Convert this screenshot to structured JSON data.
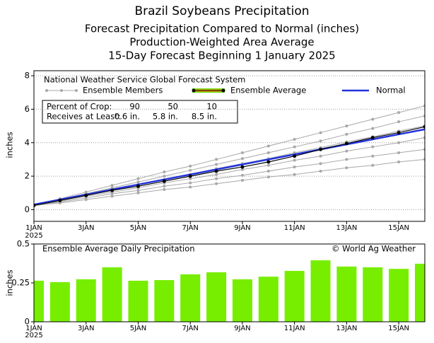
{
  "chart_data": [
    {
      "type": "line",
      "title": "Brazil Soybeans Precipitation",
      "subtitle": [
        "Forecast Precipitation Compared to Normal (inches)",
        "Production-Weighted Area Average",
        "15-Day Forecast Beginning 1 January 2025"
      ],
      "source": "National Weather Service Global Forecast System",
      "ylabel": "inches",
      "year": "2025",
      "table": {
        "rows": [
          [
            "Percent of Crop:",
            "90",
            "50",
            "10"
          ],
          [
            "Receives at Least:",
            "0.6 in.",
            "5.8 in.",
            "8.5 in."
          ]
        ]
      },
      "x": [
        1,
        2,
        3,
        4,
        5,
        6,
        7,
        8,
        9,
        10,
        11,
        12,
        13,
        14,
        15,
        16
      ],
      "xlim": [
        1,
        16
      ],
      "xticks": [
        {
          "value": 1,
          "label": "1JAN"
        },
        {
          "value": 3,
          "label": "3JAN"
        },
        {
          "value": 5,
          "label": "5JAN"
        },
        {
          "value": 7,
          "label": "7JAN"
        },
        {
          "value": 9,
          "label": "9JAN"
        },
        {
          "value": 11,
          "label": "11JAN"
        },
        {
          "value": 13,
          "label": "13JAN"
        },
        {
          "value": 15,
          "label": "15JAN"
        }
      ],
      "ylim": [
        -0.7,
        8.3
      ],
      "yticks": [
        0,
        2,
        4,
        6,
        8
      ],
      "grid": true,
      "legend_entries": [
        "Ensemble Members",
        "Ensemble Average",
        "Normal"
      ],
      "members_color": "#a8a8a8",
      "members": [
        [
          0.25,
          0.65,
          1.05,
          1.45,
          1.85,
          2.25,
          2.6,
          3.0,
          3.4,
          3.8,
          4.2,
          4.6,
          5.0,
          5.4,
          5.8,
          6.2
        ],
        [
          0.25,
          0.6,
          0.95,
          1.3,
          1.65,
          2.0,
          2.35,
          2.7,
          3.05,
          3.4,
          3.75,
          4.1,
          4.5,
          4.85,
          5.25,
          5.6
        ],
        [
          0.25,
          0.55,
          0.85,
          1.2,
          1.5,
          1.8,
          2.1,
          2.45,
          2.75,
          3.05,
          3.4,
          3.7,
          4.05,
          4.35,
          4.7,
          5.0
        ],
        [
          0.25,
          0.5,
          0.8,
          1.05,
          1.3,
          1.6,
          1.85,
          2.1,
          2.4,
          2.65,
          2.95,
          3.2,
          3.5,
          3.75,
          4.0,
          4.3
        ],
        [
          0.25,
          0.45,
          0.7,
          0.95,
          1.15,
          1.4,
          1.6,
          1.85,
          2.05,
          2.3,
          2.55,
          2.75,
          3.0,
          3.2,
          3.4,
          3.6
        ],
        [
          0.25,
          0.4,
          0.6,
          0.8,
          1.0,
          1.2,
          1.35,
          1.55,
          1.75,
          1.95,
          2.1,
          2.3,
          2.5,
          2.65,
          2.85,
          3.0
        ]
      ],
      "series": [
        {
          "name": "Normal",
          "color": "#2233dd",
          "values": [
            0.3,
            0.6,
            0.9,
            1.2,
            1.5,
            1.8,
            2.1,
            2.4,
            2.7,
            3.0,
            3.3,
            3.6,
            3.9,
            4.2,
            4.5,
            4.8
          ]
        },
        {
          "name": "Ensemble Average",
          "color": "#000000",
          "values": [
            0.25,
            0.55,
            0.85,
            1.15,
            1.4,
            1.7,
            2.0,
            2.3,
            2.55,
            2.85,
            3.2,
            3.6,
            3.95,
            4.3,
            4.6,
            4.95
          ]
        }
      ]
    },
    {
      "type": "bar",
      "title": "Ensemble Average Daily Precipitation",
      "credit": "© World Ag Weather",
      "ylabel": "inches",
      "year": "2025",
      "color": "#77ee00",
      "x": [
        1,
        2,
        3,
        4,
        5,
        6,
        7,
        8,
        9,
        10,
        11,
        12,
        13,
        14,
        15,
        16
      ],
      "xlim": [
        1,
        16
      ],
      "xticks": [
        {
          "value": 1,
          "label": "1JAN"
        },
        {
          "value": 3,
          "label": "3JAN"
        },
        {
          "value": 5,
          "label": "5JAN"
        },
        {
          "value": 7,
          "label": "7JAN"
        },
        {
          "value": 9,
          "label": "9JAN"
        },
        {
          "value": 11,
          "label": "11JAN"
        },
        {
          "value": 13,
          "label": "13JAN"
        },
        {
          "value": 15,
          "label": "15JAN"
        }
      ],
      "ylim": [
        0,
        0.5
      ],
      "yticks": [
        0,
        0.25,
        0.5
      ],
      "values": [
        0.264,
        0.255,
        0.273,
        0.35,
        0.264,
        0.268,
        0.305,
        0.318,
        0.273,
        0.29,
        0.327,
        0.395,
        0.355,
        0.35,
        0.34,
        0.373
      ]
    }
  ]
}
